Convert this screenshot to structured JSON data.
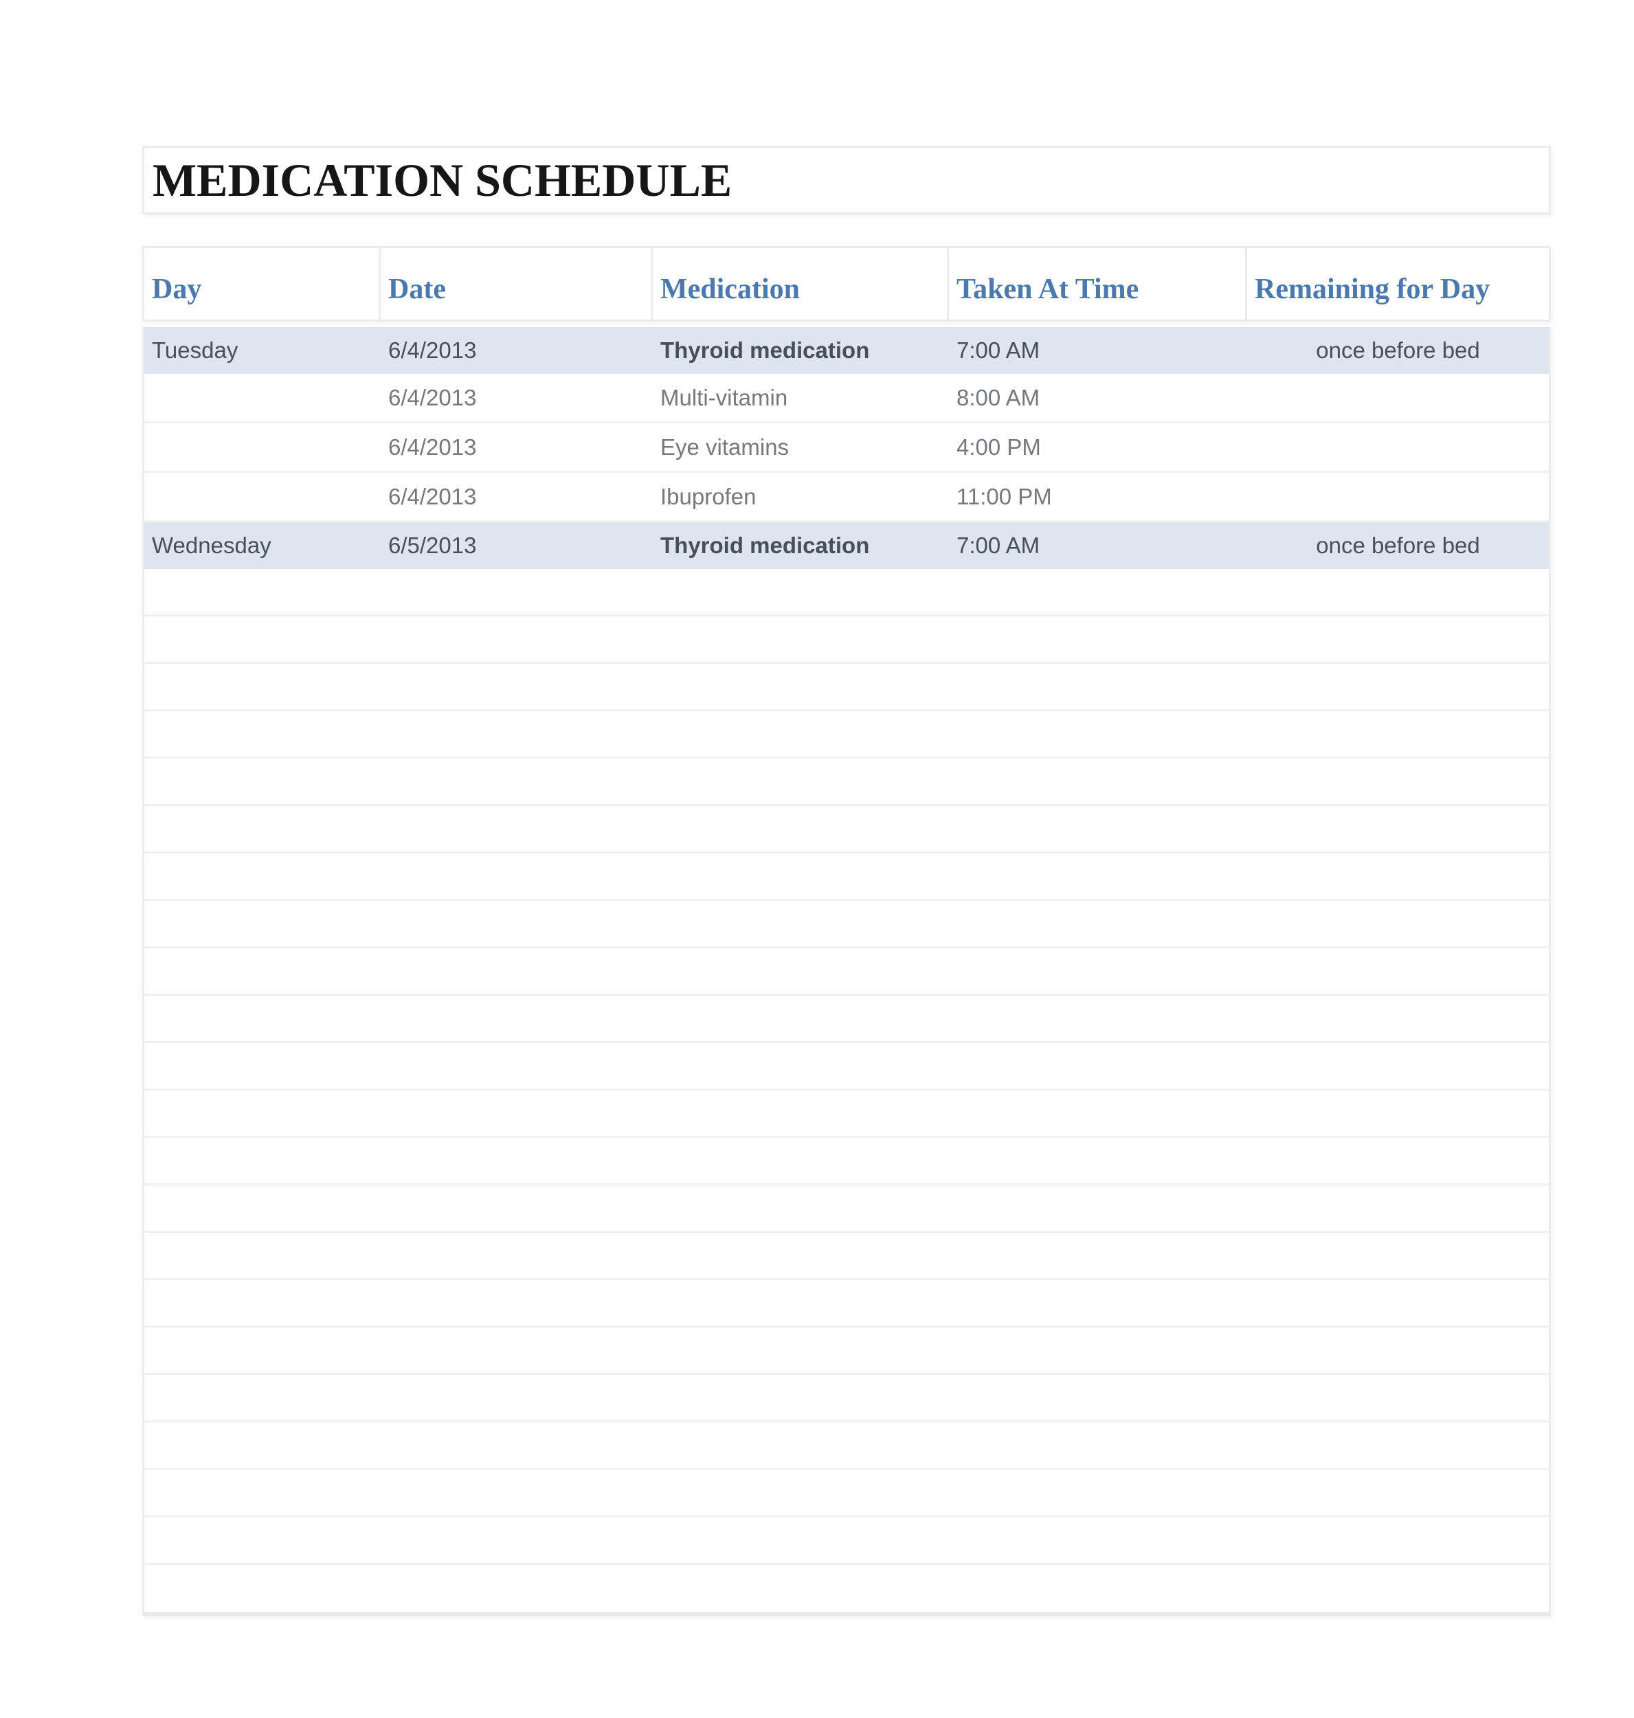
{
  "page": {
    "title": "MEDICATION SCHEDULE"
  },
  "colors": {
    "accent_header_blue": "#4b79ae",
    "row_highlight_blue": "#dee4f0",
    "dark_row_text": "#46505c",
    "muted_row_text": "#75787d"
  },
  "table": {
    "columns": [
      {
        "key": "day",
        "label": "Day"
      },
      {
        "key": "date",
        "label": "Date"
      },
      {
        "key": "medication",
        "label": "Medication"
      },
      {
        "key": "taken",
        "label": "Taken At Time"
      },
      {
        "key": "remaining",
        "label": "Remaining for Day"
      }
    ],
    "rows": [
      {
        "day": "Tuesday",
        "date": "6/4/2013",
        "medication": "Thyroid medication",
        "taken": "7:00 AM",
        "remaining": "once before bed",
        "highlight": true
      },
      {
        "day": "",
        "date": "6/4/2013",
        "medication": "Multi-vitamin",
        "taken": "8:00 AM",
        "remaining": "",
        "highlight": false
      },
      {
        "day": "",
        "date": "6/4/2013",
        "medication": "Eye vitamins",
        "taken": "4:00 PM",
        "remaining": "",
        "highlight": false
      },
      {
        "day": "",
        "date": "6/4/2013",
        "medication": "Ibuprofen",
        "taken": "11:00 PM",
        "remaining": "",
        "highlight": false
      },
      {
        "day": "Wednesday",
        "date": "6/5/2013",
        "medication": "Thyroid medication",
        "taken": "7:00 AM",
        "remaining": "once before bed",
        "highlight": true
      }
    ],
    "empty_row_count": 22
  }
}
